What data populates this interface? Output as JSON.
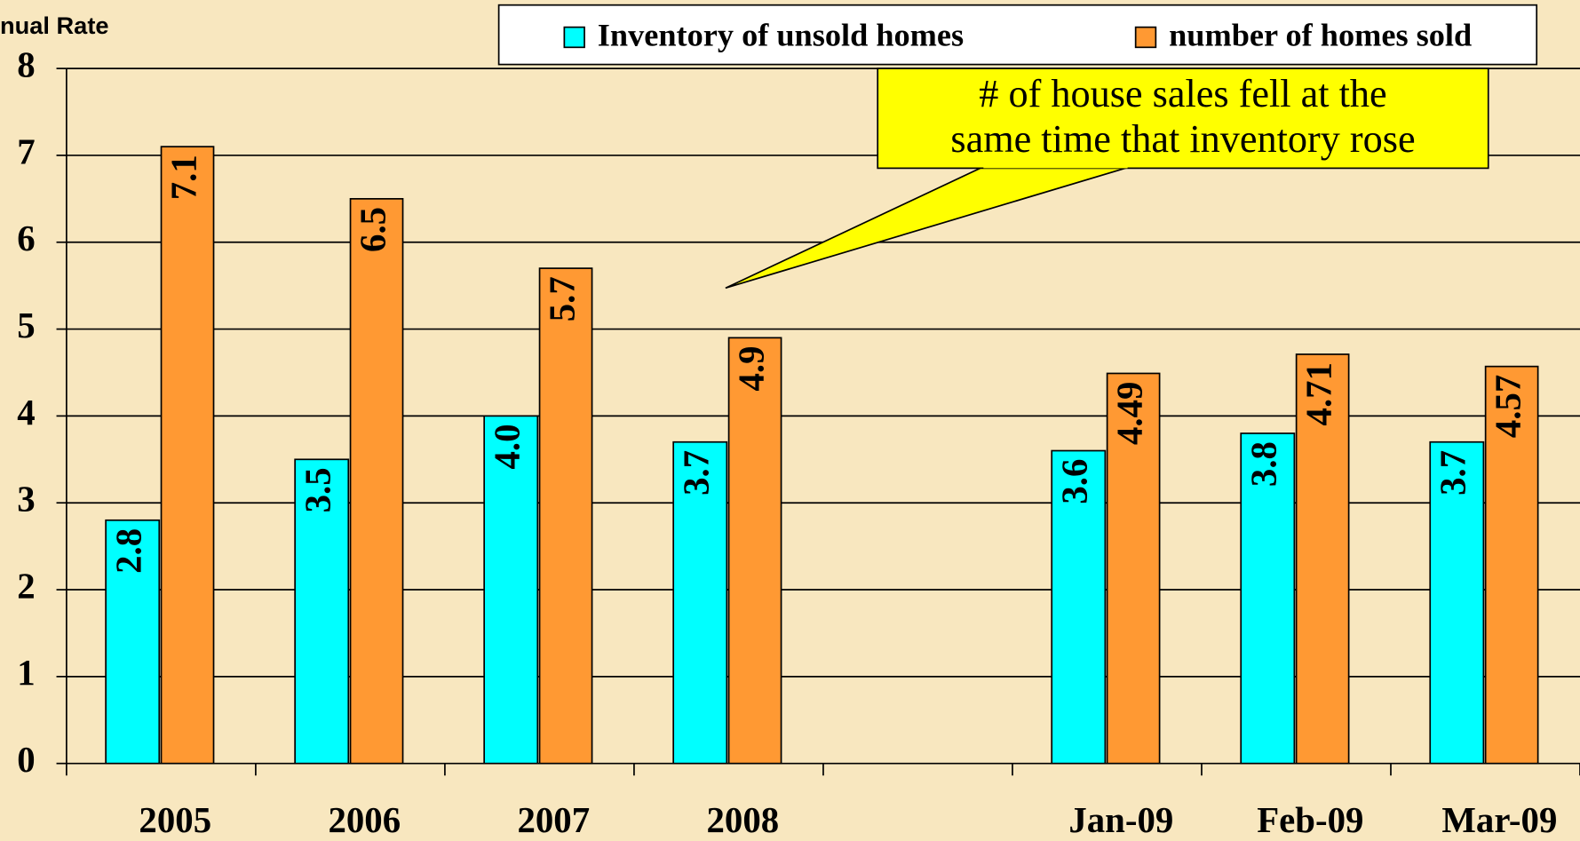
{
  "chart_data": {
    "type": "bar",
    "y_label": "nual Rate",
    "categories": [
      "2005",
      "2006",
      "2007",
      "2008",
      null,
      "Jan-09",
      "Feb-09",
      "Mar-09"
    ],
    "series": [
      {
        "name": "Inventory of unsold homes",
        "color": "#00ffff",
        "values": [
          2.8,
          3.5,
          4.0,
          3.7,
          null,
          3.6,
          3.8,
          3.7
        ],
        "value_labels": [
          "2.8",
          "3.5",
          "4.0",
          "3.7",
          null,
          "3.6",
          "3.8",
          "3.7"
        ]
      },
      {
        "name": "number of homes sold",
        "color": "#ff9933",
        "values": [
          7.1,
          6.5,
          5.7,
          4.9,
          null,
          4.49,
          4.71,
          4.57
        ],
        "value_labels": [
          "7.1",
          "6.5",
          "5.7",
          "4.9",
          null,
          "4.49",
          "4.71",
          "4.57"
        ]
      }
    ],
    "annotation": [
      "# of house sales fell at the",
      "same time that inventory rose"
    ],
    "annotation_color": "#ffff00",
    "ylim": [
      0,
      8
    ],
    "yticks": [
      0,
      1,
      2,
      3,
      4,
      5,
      6,
      7,
      8
    ],
    "grid": true,
    "legend": "top"
  }
}
